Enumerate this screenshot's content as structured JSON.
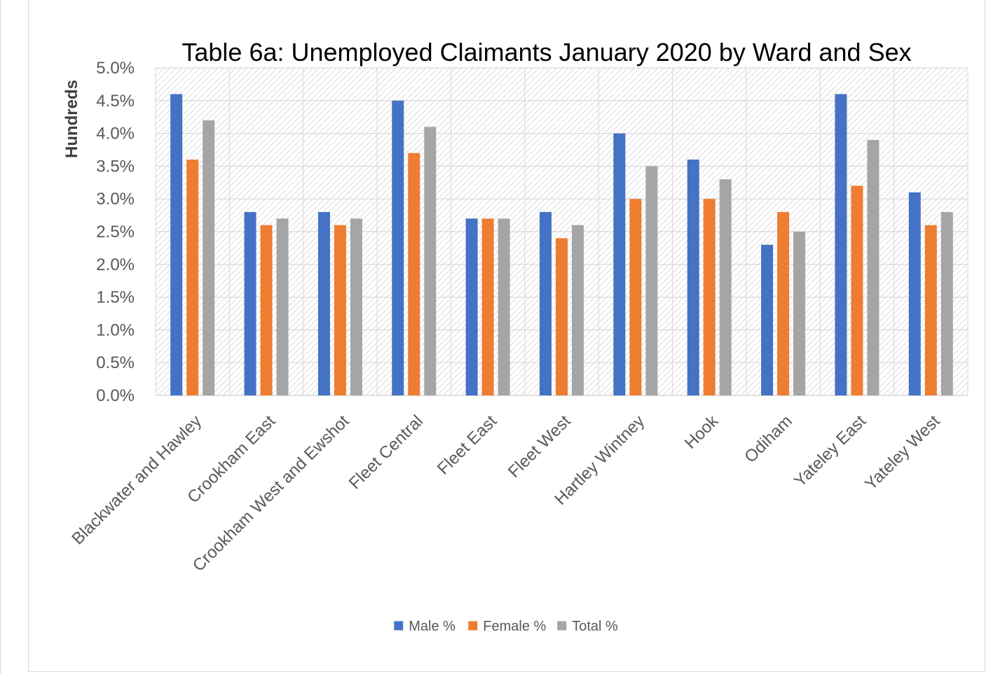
{
  "chart_data": {
    "type": "bar",
    "title": "Table 6a: Unemployed Claimants January 2020 by Ward and Sex",
    "ylabel": "Hundreds",
    "xlabel": "",
    "ylim": [
      0,
      5.0
    ],
    "yticks": [
      "0.0%",
      "0.5%",
      "1.0%",
      "1.5%",
      "2.0%",
      "2.5%",
      "3.0%",
      "3.5%",
      "4.0%",
      "4.5%",
      "5.0%"
    ],
    "grid": true,
    "legend_position": "bottom",
    "categories": [
      "Blackwater and Hawley",
      "Crookham East",
      "Crookham West and Ewshot",
      "Fleet Central",
      "Fleet East",
      "Fleet West",
      "Hartley Wintney",
      "Hook",
      "Odiham",
      "Yateley East",
      "Yateley West"
    ],
    "series": [
      {
        "name": "Male %",
        "color": "#4472c4",
        "values": [
          4.6,
          2.8,
          2.8,
          4.5,
          2.7,
          2.8,
          4.0,
          3.6,
          2.3,
          4.6,
          3.1
        ]
      },
      {
        "name": "Female %",
        "color": "#ed7d31",
        "values": [
          3.6,
          2.6,
          2.6,
          3.7,
          2.7,
          2.4,
          3.0,
          3.0,
          2.8,
          3.2,
          2.6
        ]
      },
      {
        "name": "Total %",
        "color": "#a5a5a5",
        "values": [
          4.2,
          2.7,
          2.7,
          4.1,
          2.7,
          2.6,
          3.5,
          3.3,
          2.5,
          3.9,
          2.8
        ]
      }
    ]
  }
}
